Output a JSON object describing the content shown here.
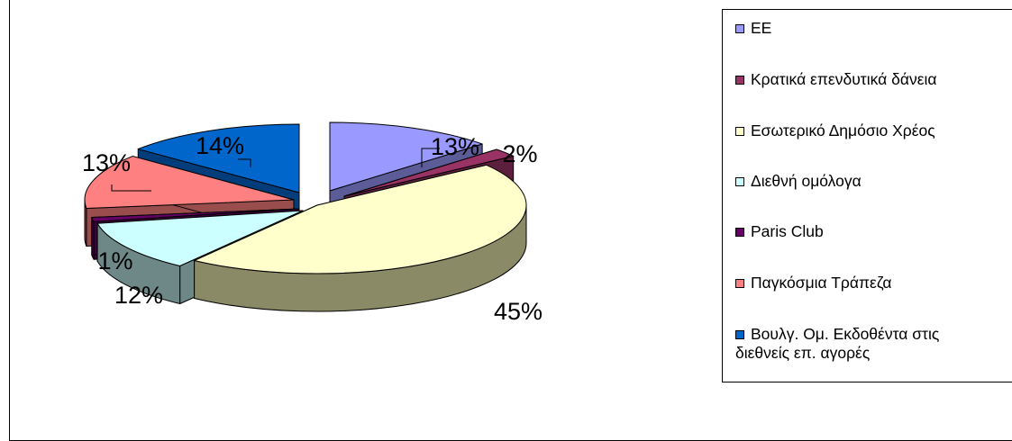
{
  "chart_data": {
    "type": "pie",
    "style": "3d-exploded",
    "legend_position": "right",
    "series": [
      {
        "name": "ΕΕ",
        "value": 13,
        "label": "13%",
        "color": "#9999ff",
        "side": "#5c5c99",
        "top_edge": "#7070cc"
      },
      {
        "name": "Κρατικά επενδυτικά δάνεια",
        "value": 2,
        "label": "2%",
        "color": "#993366",
        "side": "#5c1f3d",
        "top_edge": "#7a2952"
      },
      {
        "name": "Εσωτερικό Δημόσιο Χρέος",
        "value": 45,
        "label": "45%",
        "color": "#ffffcc",
        "side": "#8a8a66",
        "top_edge": "#ccccaa"
      },
      {
        "name": "Διεθνή ομόλογα",
        "value": 12,
        "label": "12%",
        "color": "#ccffff",
        "side": "#6e8787",
        "top_edge": "#a3cccc"
      },
      {
        "name": "Paris Club",
        "value": 1,
        "label": "1%",
        "color": "#660066",
        "side": "#3d003d",
        "top_edge": "#520052"
      },
      {
        "name": "Παγκόσμια Τράπεζα",
        "value": 13,
        "label": "13%",
        "color": "#ff8080",
        "side": "#994d4d",
        "top_edge": "#cc6666"
      },
      {
        "name": "Βουλγ. Ομ. Εκδοθέντα στις διεθνείς επ. αγορές",
        "name_lines": [
          "Βουλγ. Ομ. Εκδοθέντα στις",
          "διεθνείς επ. αγορές"
        ],
        "value": 14,
        "label": "14%",
        "color": "#0066cc",
        "side": "#003d7a",
        "top_edge": "#0052a3"
      }
    ]
  }
}
